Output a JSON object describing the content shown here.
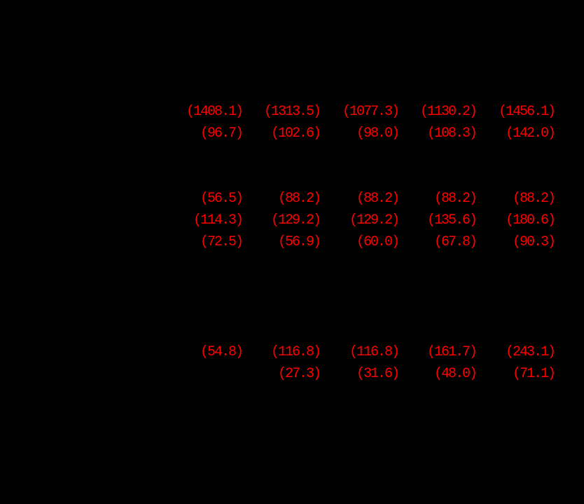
{
  "colors": {
    "background": "#000000",
    "negative_value_red": "#ff0000"
  },
  "table": {
    "columns_count": 5,
    "rows": [
      [
        "(1408.1)",
        "(1313.5)",
        "(1077.3)",
        "(1130.2)",
        "(1456.1)"
      ],
      [
        "(96.7)",
        "(102.6)",
        "(98.0)",
        "(108.3)",
        "(142.0)"
      ],
      [
        "(56.5)",
        "(88.2)",
        "(88.2)",
        "(88.2)",
        "(88.2)"
      ],
      [
        "(114.3)",
        "(129.2)",
        "(129.2)",
        "(135.6)",
        "(180.6)"
      ],
      [
        "(72.5)",
        "(56.9)",
        "(60.0)",
        "(67.8)",
        "(90.3)"
      ],
      [
        "(54.8)",
        "(116.8)",
        "(116.8)",
        "(161.7)",
        "(243.1)"
      ],
      [
        null,
        "(27.3)",
        "(31.6)",
        "(48.0)",
        "(71.1)"
      ]
    ]
  }
}
